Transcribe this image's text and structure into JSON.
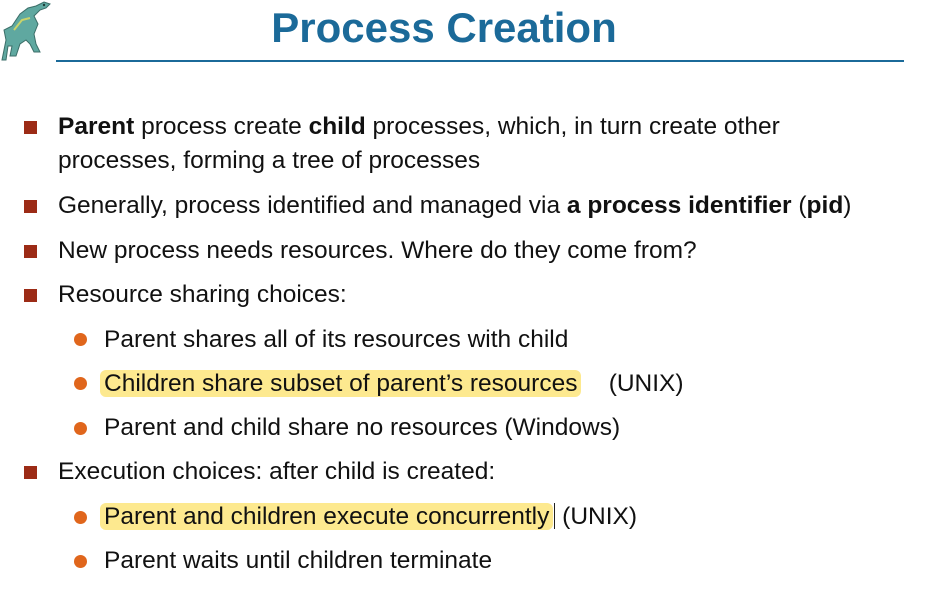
{
  "slide": {
    "title": "Process Creation",
    "logo_icon": "dinosaur-logo",
    "title_color": "#1b6a99",
    "bullet_color": "#9c2b16",
    "sub_bullet_color": "#e0661c",
    "highlight_color": "#fde98f"
  },
  "bullets": {
    "b1": {
      "bold1": "Parent",
      "t1": " process create ",
      "bold2": "child",
      "t2": " processes, which, in turn create other",
      "line2": "processes, forming a tree of processes"
    },
    "b2": {
      "t1": "Generally, process identified and managed via ",
      "bold1": "a process identifier",
      "t2": " (",
      "bold2": "pid",
      "t3": ")"
    },
    "b3": {
      "text": "New process needs resources. Where do they come from?"
    },
    "b4": {
      "text": "Resource sharing choices:",
      "sub1": "Parent shares all of its resources with  child",
      "sub2_highlight": "Children share subset of parent’s resources",
      "sub2_tail": "(UNIX)",
      "sub3": "Parent and child share no resources (Windows)"
    },
    "b5": {
      "text": "Execution choices: after child is created:",
      "sub1_highlight": "Parent and children execute concurrently",
      "sub1_tail": "(UNIX)",
      "sub2": "Parent waits until children terminate"
    }
  }
}
